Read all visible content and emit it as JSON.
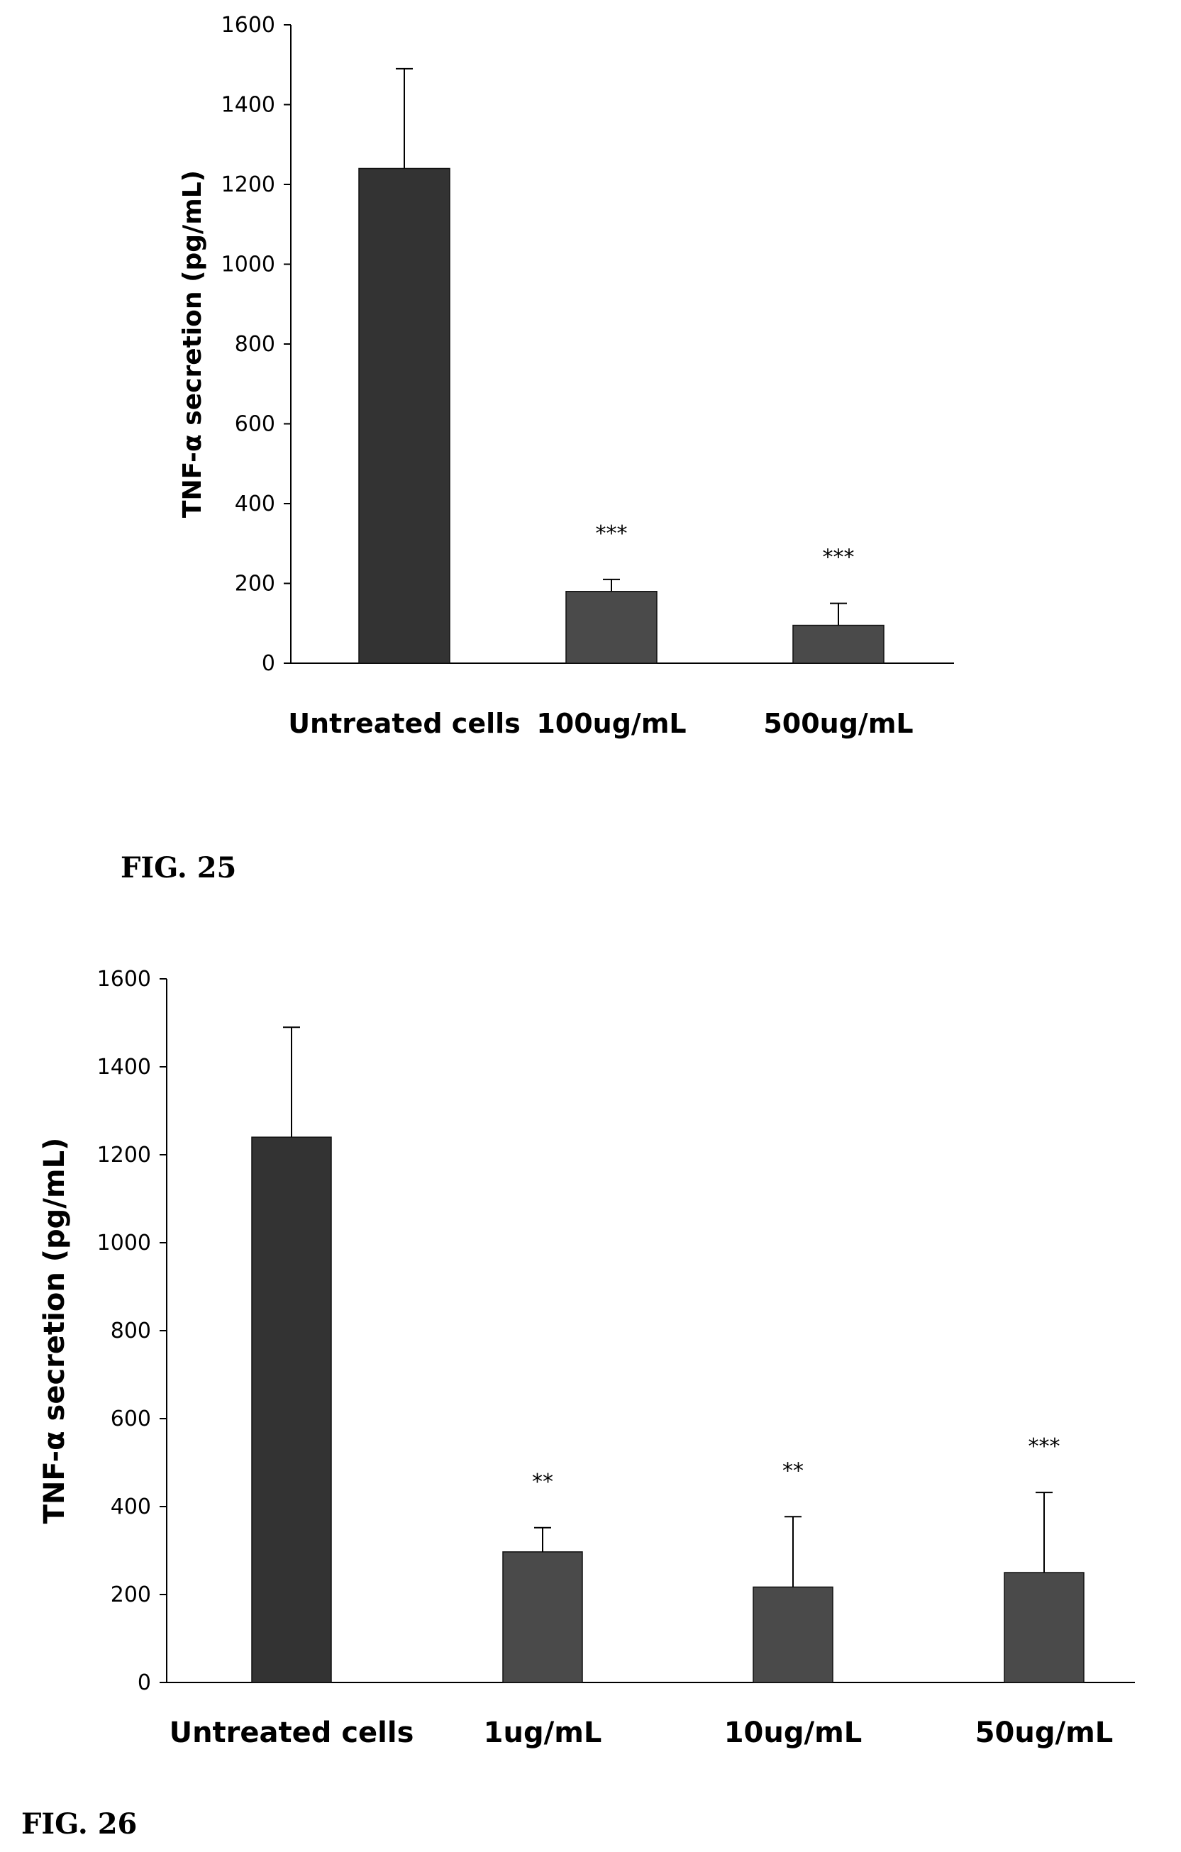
{
  "chart_data": [
    {
      "type": "bar",
      "ylabel": "TNF-α secretion (pg/mL)",
      "ylim": [
        0,
        1600
      ],
      "yticks": [
        "0",
        "200",
        "400",
        "600",
        "800",
        "1000",
        "1200",
        "1400",
        "1600"
      ],
      "categories": [
        "Untreated cells",
        "100ug/mL",
        "500ug/mL"
      ],
      "values": [
        1240,
        180,
        95
      ],
      "errors": [
        250,
        30,
        55
      ],
      "significance": [
        "",
        "***",
        "***"
      ],
      "bar_colors": [
        "#333333",
        "#4a4a4a",
        "#4a4a4a"
      ],
      "grid": false
    },
    {
      "type": "bar",
      "ylabel": "TNF-α secretion (pg/mL)",
      "ylim": [
        0,
        1600
      ],
      "yticks": [
        "0",
        "200",
        "400",
        "600",
        "800",
        "1000",
        "1200",
        "1400",
        "1600"
      ],
      "categories": [
        "Untreated cells",
        "1ug/mL",
        "10ug/mL",
        "50ug/mL"
      ],
      "values": [
        1240,
        297,
        217,
        250
      ],
      "errors": [
        250,
        55,
        160,
        182
      ],
      "significance": [
        "",
        "**",
        "**",
        "***"
      ],
      "bar_colors": [
        "#333333",
        "#4a4a4a",
        "#4a4a4a",
        "#4a4a4a"
      ],
      "grid": false
    }
  ],
  "figure_labels": [
    "FIG. 25",
    "FIG. 26"
  ]
}
